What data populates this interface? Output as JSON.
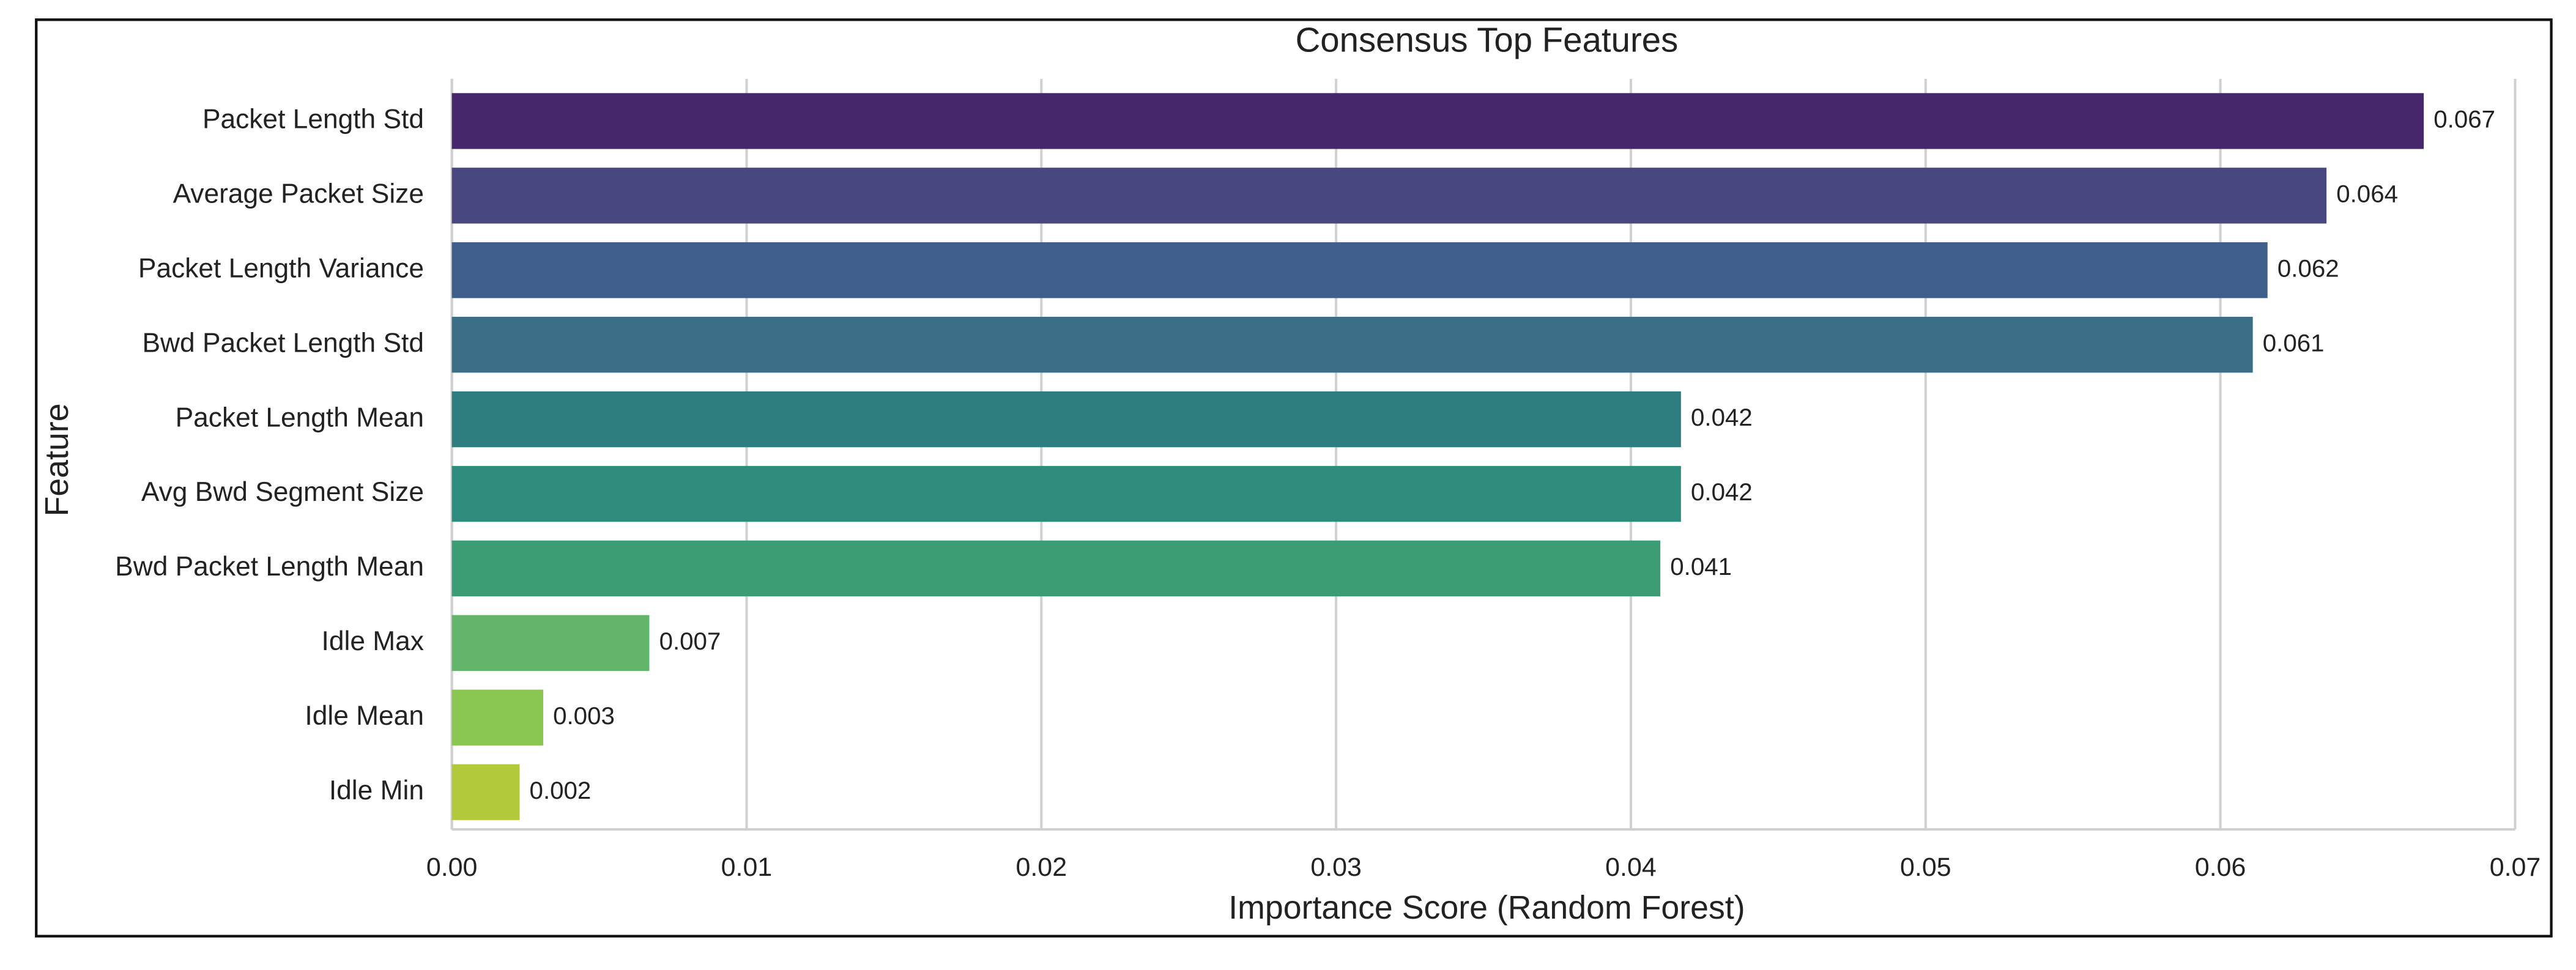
{
  "chart_data": {
    "type": "barh",
    "title": "Consensus Top Features",
    "x_label": "Importance Score (Random Forest)",
    "y_label": "Feature",
    "categories": [
      "Packet Length Std",
      "Average Packet Size",
      "Packet Length Variance",
      "Bwd Packet Length Std",
      "Packet Length Mean",
      "Avg Bwd Segment Size",
      "Bwd Packet Length Mean",
      "Idle Max",
      "Idle Mean",
      "Idle Min"
    ],
    "values": [
      0.0669,
      0.0636,
      0.0616,
      0.0611,
      0.0417,
      0.0417,
      0.041,
      0.0067,
      0.0031,
      0.0023
    ],
    "value_labels": [
      "0.067",
      "0.064",
      "0.062",
      "0.061",
      "0.042",
      "0.042",
      "0.041",
      "0.007",
      "0.003",
      "0.002"
    ],
    "colors": [
      "#46276b",
      "#48477f",
      "#3f5f8a",
      "#3a6f87",
      "#2e7e80",
      "#2e8c7c",
      "#3c9c73",
      "#62b56a",
      "#8bc652",
      "#b1c93a"
    ],
    "xlim": [
      0,
      0.07
    ],
    "xticks": [
      {
        "value": 0,
        "label": "0.00"
      },
      0.01,
      0.02,
      0.03,
      0.04,
      0.05,
      0.06,
      0.07
    ],
    "grid": true
  }
}
